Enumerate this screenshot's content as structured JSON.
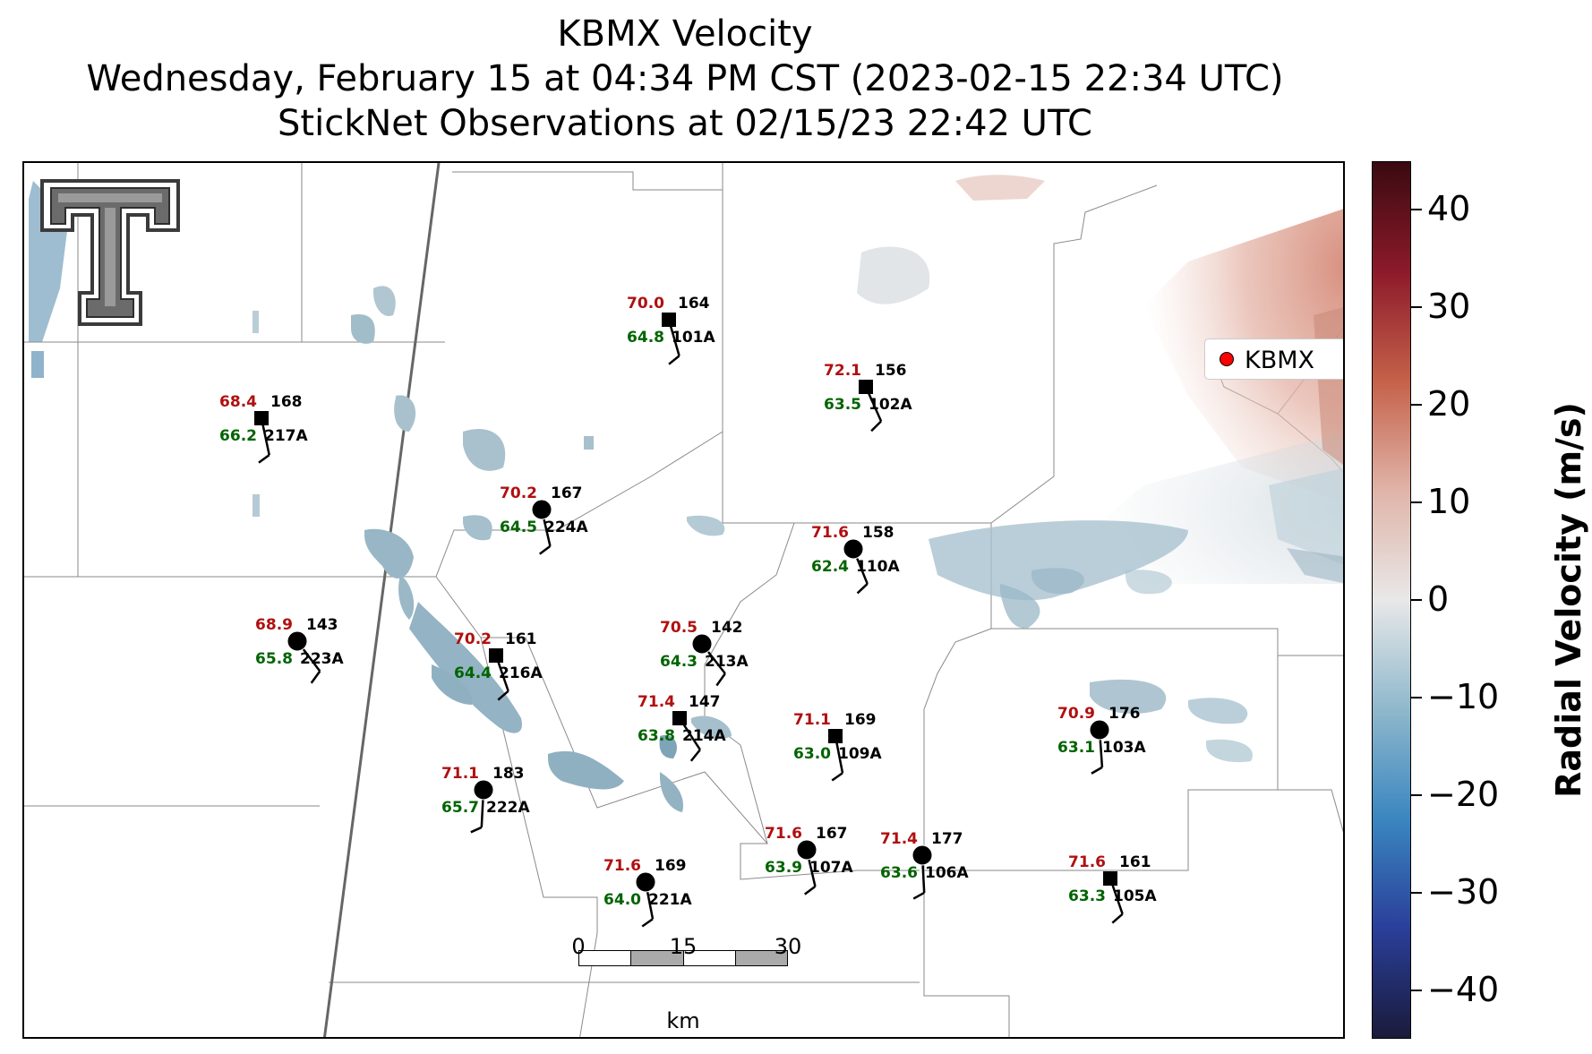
{
  "title": {
    "line1": "KBMX Velocity",
    "line2": "Wednesday, February 15 at 04:34 PM CST (2023-02-15 22:34 UTC)",
    "line3": "StickNet Observations at 02/15/23 22:42 UTC"
  },
  "legend": {
    "label": "KBMX",
    "marker_color": "#ff0000"
  },
  "colorbar": {
    "label": "Radial Velocity (m/s)",
    "range": [
      -45,
      45
    ],
    "ticks": [
      "40",
      "30",
      "20",
      "10",
      "0",
      "−10",
      "−20",
      "−30",
      "−40"
    ],
    "tick_values": [
      40,
      30,
      20,
      10,
      0,
      -10,
      -20,
      -30,
      -40
    ],
    "colormap_stops": [
      "#1a1a3a",
      "#2a3f9a",
      "#3a86c0",
      "#8fb8cc",
      "#e8e8e8",
      "#e0b4a8",
      "#c5614a",
      "#8c1a2a",
      "#3a0a10"
    ]
  },
  "scalebar": {
    "labels": [
      "0",
      "15",
      "30"
    ],
    "unit": "km",
    "segment_colors": [
      "#ffffff",
      "#aaaaaa",
      "#ffffff",
      "#aaaaaa"
    ]
  },
  "logo": {
    "name": "Texas Tech Double T"
  },
  "colors": {
    "temperature": "#b01010",
    "dewpoint": "#006400",
    "station": "#000000"
  },
  "stations": [
    {
      "id": "101A",
      "temp": "70.0",
      "dew": "64.8",
      "dir": "164",
      "marker": "square"
    },
    {
      "id": "102A",
      "temp": "72.1",
      "dew": "63.5",
      "dir": "156",
      "marker": "square"
    },
    {
      "id": "217A",
      "temp": "68.4",
      "dew": "66.2",
      "dir": "168",
      "marker": "square"
    },
    {
      "id": "224A",
      "temp": "70.2",
      "dew": "64.5",
      "dir": "167",
      "marker": "circle"
    },
    {
      "id": "110A",
      "temp": "71.6",
      "dew": "62.4",
      "dir": "158",
      "marker": "circle"
    },
    {
      "id": "223A",
      "temp": "68.9",
      "dew": "65.8",
      "dir": "143",
      "marker": "circle"
    },
    {
      "id": "216A",
      "temp": "70.2",
      "dew": "64.4",
      "dir": "161",
      "marker": "square"
    },
    {
      "id": "213A",
      "temp": "70.5",
      "dew": "64.3",
      "dir": "142",
      "marker": "circle"
    },
    {
      "id": "214A",
      "temp": "71.4",
      "dew": "63.8",
      "dir": "147",
      "marker": "square"
    },
    {
      "id": "109A",
      "temp": "71.1",
      "dew": "63.0",
      "dir": "169",
      "marker": "square"
    },
    {
      "id": "103A",
      "temp": "70.9",
      "dew": "63.1",
      "dir": "176",
      "marker": "circle"
    },
    {
      "id": "222A",
      "temp": "71.1",
      "dew": "65.7",
      "dir": "183",
      "marker": "circle"
    },
    {
      "id": "107A",
      "temp": "71.6",
      "dew": "63.9",
      "dir": "167",
      "marker": "circle"
    },
    {
      "id": "106A",
      "temp": "71.4",
      "dew": "63.6",
      "dir": "177",
      "marker": "circle"
    },
    {
      "id": "221A",
      "temp": "71.6",
      "dew": "64.0",
      "dir": "169",
      "marker": "circle"
    },
    {
      "id": "105A",
      "temp": "71.6",
      "dew": "63.3",
      "dir": "161",
      "marker": "square"
    }
  ]
}
